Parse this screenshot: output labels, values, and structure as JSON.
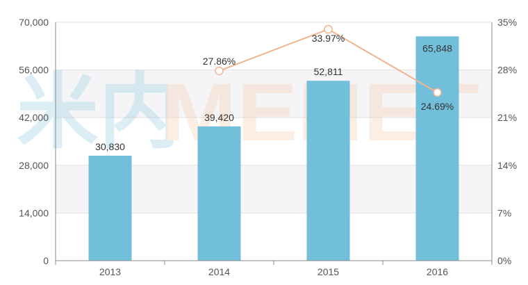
{
  "watermark": {
    "cn": "米内",
    "latin": "MENET"
  },
  "chart_data": {
    "type": "bar",
    "categories": [
      "2013",
      "2014",
      "2015",
      "2016"
    ],
    "series": [
      {
        "type": "bar",
        "values": [
          30830,
          39420,
          52811,
          65848
        ],
        "labels": [
          "30,830",
          "39,420",
          "52,811",
          "65,848"
        ],
        "color": "#72bfdb"
      },
      {
        "type": "line",
        "axis": "right",
        "values": [
          null,
          27.86,
          33.97,
          24.69
        ],
        "labels": [
          "",
          "27.86%",
          "33.97%",
          "24.69%"
        ],
        "color": "#f2b48c"
      }
    ],
    "ylim": [
      0,
      70000
    ],
    "y_ticks": [
      "0",
      "14,000",
      "28,000",
      "42,000",
      "56,000",
      "70,000"
    ],
    "y2lim": [
      0,
      35
    ],
    "y2_ticks": [
      "0%",
      "7%",
      "14%",
      "21%",
      "28%",
      "35%"
    ],
    "title": "",
    "xlabel": "",
    "ylabel": "",
    "grid": true,
    "legend": "none"
  }
}
